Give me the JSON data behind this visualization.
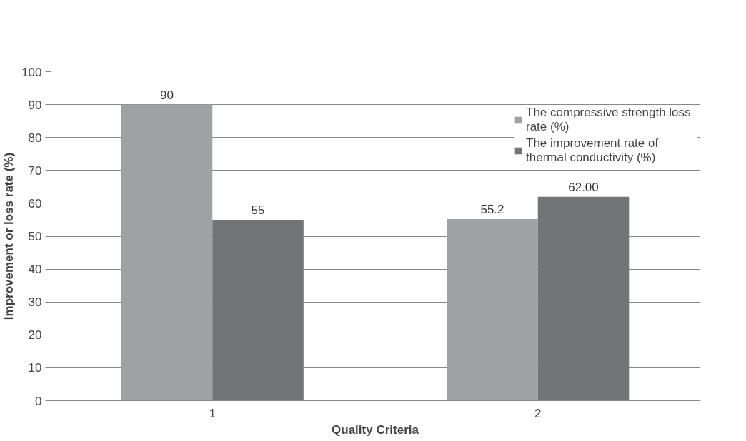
{
  "chart_data": {
    "type": "bar",
    "xlabel": "Quality Criteria",
    "ylabel": "Improvement or loss rate (%)",
    "categories": [
      "1",
      "2"
    ],
    "series": [
      {
        "name": "The compressive strength loss rate (%)",
        "color": "#a0a1a4",
        "values": [
          90,
          55.2
        ],
        "value_labels": [
          "90",
          "55.2"
        ]
      },
      {
        "name": "The improvement rate of thermal conductivity (%)",
        "color": "#737477",
        "values": [
          55,
          62
        ],
        "value_labels": [
          "55",
          "62.00"
        ]
      }
    ],
    "ylim": [
      0,
      100
    ],
    "yticks": [
      0,
      10,
      20,
      30,
      40,
      50,
      60,
      70,
      80,
      90,
      100
    ],
    "grid": "y",
    "legend": "top right"
  }
}
